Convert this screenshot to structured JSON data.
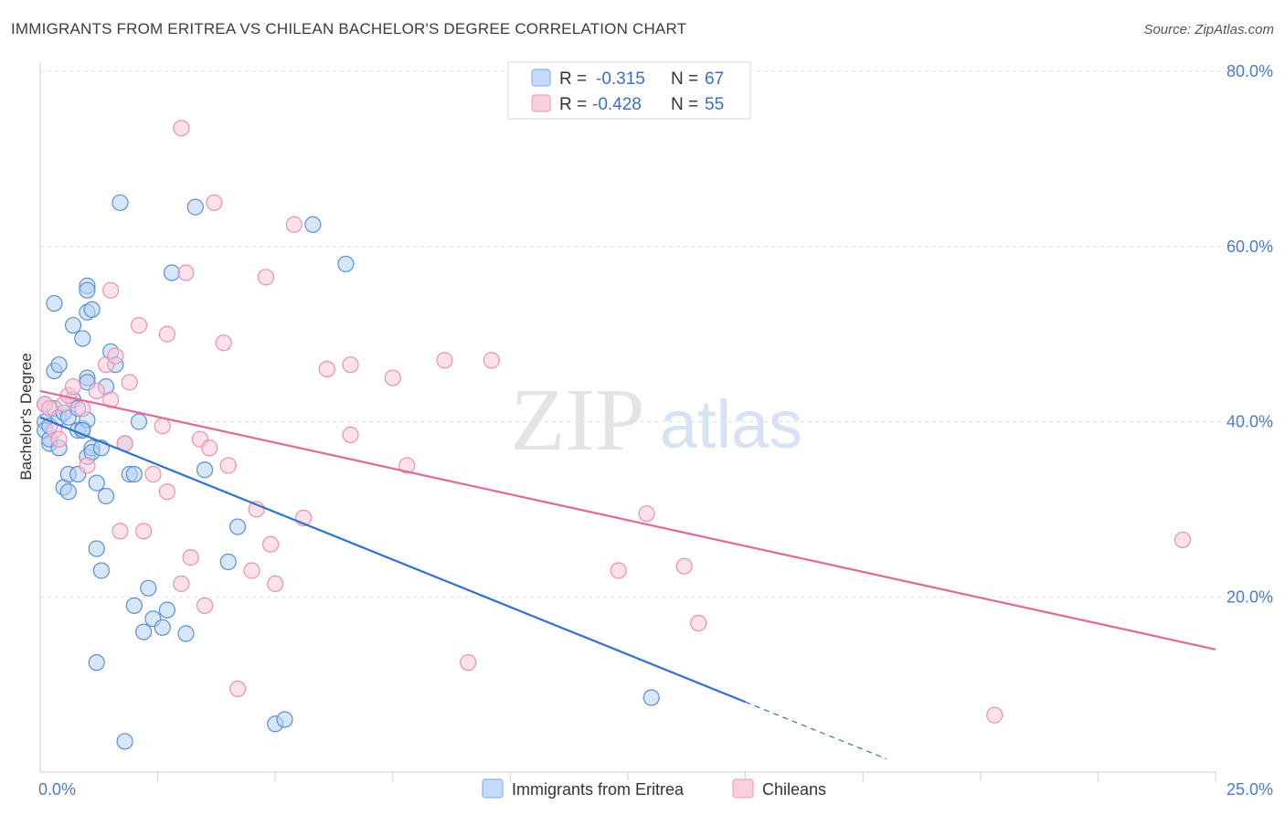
{
  "title": "IMMIGRANTS FROM ERITREA VS CHILEAN BACHELOR'S DEGREE CORRELATION CHART",
  "source": "Source: ZipAtlas.com",
  "watermark": {
    "zip": "ZIP",
    "atlas": "atlas"
  },
  "legend_top": [
    {
      "r_label": "R =",
      "r_value": "-0.315",
      "n_label": "N =",
      "n_value": "67",
      "color": "#8ab4ea",
      "fill": "#c5dafa"
    },
    {
      "r_label": "R =",
      "r_value": "-0.428",
      "n_label": "N =",
      "n_value": "55",
      "color": "#f3a3bf",
      "fill": "#fbd0de"
    }
  ],
  "chart_data": {
    "type": "scatter",
    "xlabel": "",
    "ylabel": "Bachelor's Degree",
    "xlim": [
      0,
      25
    ],
    "ylim": [
      0,
      80
    ],
    "x_tick_labels": [
      "0.0%",
      "25.0%"
    ],
    "y_tick_labels": [
      "20.0%",
      "40.0%",
      "60.0%",
      "80.0%"
    ],
    "y_ticks": [
      20,
      40,
      60,
      80
    ],
    "grid": true,
    "series": [
      {
        "name": "Immigrants from Eritrea",
        "color": "#5b8fd6",
        "fill": "#b7d1f3",
        "line_color": "#2f72d0",
        "trend": {
          "x": [
            0,
            15
          ],
          "y": [
            40.5,
            8.0
          ],
          "dash_to": [
            18.0,
            1.5
          ]
        },
        "points": [
          [
            0.1,
            42.0
          ],
          [
            0.1,
            40.0
          ],
          [
            0.1,
            39.0
          ],
          [
            0.2,
            37.5
          ],
          [
            0.2,
            38.0
          ],
          [
            0.2,
            39.5
          ],
          [
            0.3,
            41.5
          ],
          [
            0.3,
            53.5
          ],
          [
            0.3,
            45.8
          ],
          [
            0.4,
            46.5
          ],
          [
            0.4,
            40.5
          ],
          [
            0.4,
            37.0
          ],
          [
            0.5,
            41.0
          ],
          [
            0.5,
            32.5
          ],
          [
            0.6,
            34.0
          ],
          [
            0.6,
            32.0
          ],
          [
            0.6,
            40.5
          ],
          [
            0.7,
            51.0
          ],
          [
            0.7,
            42.5
          ],
          [
            0.8,
            41.5
          ],
          [
            0.8,
            39.0
          ],
          [
            0.8,
            34.0
          ],
          [
            0.9,
            39.2
          ],
          [
            0.9,
            49.5
          ],
          [
            1.0,
            45.0
          ],
          [
            1.0,
            44.5
          ],
          [
            1.0,
            40.2
          ],
          [
            1.0,
            52.5
          ],
          [
            1.0,
            55.5
          ],
          [
            1.0,
            55.0
          ],
          [
            1.0,
            36.0
          ],
          [
            1.1,
            52.8
          ],
          [
            1.1,
            37.0
          ],
          [
            1.1,
            36.5
          ],
          [
            1.2,
            33.0
          ],
          [
            1.2,
            25.5
          ],
          [
            1.3,
            37.0
          ],
          [
            1.3,
            23.0
          ],
          [
            1.4,
            31.5
          ],
          [
            1.4,
            44.0
          ],
          [
            1.5,
            48.0
          ],
          [
            1.6,
            46.5
          ],
          [
            1.7,
            65.0
          ],
          [
            1.8,
            37.5
          ],
          [
            1.9,
            34.0
          ],
          [
            2.0,
            34.0
          ],
          [
            2.0,
            19.0
          ],
          [
            2.1,
            40.0
          ],
          [
            2.2,
            16.0
          ],
          [
            2.3,
            21.0
          ],
          [
            2.4,
            17.5
          ],
          [
            2.6,
            16.5
          ],
          [
            2.7,
            18.5
          ],
          [
            2.8,
            57.0
          ],
          [
            3.1,
            15.8
          ],
          [
            3.3,
            64.5
          ],
          [
            3.5,
            34.5
          ],
          [
            4.0,
            24.0
          ],
          [
            4.2,
            28.0
          ],
          [
            5.0,
            5.5
          ],
          [
            5.2,
            6.0
          ],
          [
            5.8,
            62.5
          ],
          [
            6.5,
            58.0
          ],
          [
            13.0,
            8.5
          ],
          [
            1.2,
            12.5
          ],
          [
            1.8,
            3.5
          ],
          [
            0.9,
            39.0
          ]
        ]
      },
      {
        "name": "Chileans",
        "color": "#ee8fb0",
        "fill": "#fbc9d9",
        "line_color": "#e0689a",
        "trend": {
          "x": [
            0,
            25
          ],
          "y": [
            43.5,
            14.0
          ]
        },
        "points": [
          [
            0.1,
            42.0
          ],
          [
            0.2,
            41.5
          ],
          [
            0.3,
            39.0
          ],
          [
            0.4,
            38.0
          ],
          [
            0.5,
            42.0
          ],
          [
            0.6,
            43.0
          ],
          [
            0.7,
            44.0
          ],
          [
            0.9,
            41.5
          ],
          [
            1.0,
            35.0
          ],
          [
            1.2,
            43.5
          ],
          [
            1.4,
            46.5
          ],
          [
            1.5,
            55.0
          ],
          [
            1.5,
            42.5
          ],
          [
            1.6,
            47.5
          ],
          [
            1.7,
            27.5
          ],
          [
            1.8,
            37.5
          ],
          [
            1.9,
            44.5
          ],
          [
            2.1,
            51.0
          ],
          [
            2.2,
            27.5
          ],
          [
            2.4,
            34.0
          ],
          [
            2.6,
            39.5
          ],
          [
            2.7,
            32.0
          ],
          [
            2.7,
            50.0
          ],
          [
            3.0,
            21.5
          ],
          [
            3.0,
            73.5
          ],
          [
            3.1,
            57.0
          ],
          [
            3.2,
            24.5
          ],
          [
            3.4,
            38.0
          ],
          [
            3.5,
            19.0
          ],
          [
            3.6,
            37.0
          ],
          [
            3.7,
            65.0
          ],
          [
            3.9,
            49.0
          ],
          [
            4.0,
            35.0
          ],
          [
            4.2,
            9.5
          ],
          [
            4.5,
            23.0
          ],
          [
            4.6,
            30.0
          ],
          [
            4.8,
            56.5
          ],
          [
            4.9,
            26.0
          ],
          [
            5.0,
            21.5
          ],
          [
            5.4,
            62.5
          ],
          [
            5.6,
            29.0
          ],
          [
            6.1,
            46.0
          ],
          [
            6.6,
            46.5
          ],
          [
            6.6,
            38.5
          ],
          [
            7.5,
            45.0
          ],
          [
            7.8,
            35.0
          ],
          [
            8.6,
            47.0
          ],
          [
            9.1,
            12.5
          ],
          [
            9.6,
            47.0
          ],
          [
            12.3,
            23.0
          ],
          [
            12.9,
            29.5
          ],
          [
            13.7,
            23.5
          ],
          [
            14.0,
            17.0
          ],
          [
            20.3,
            6.5
          ],
          [
            24.3,
            26.5
          ]
        ]
      }
    ]
  }
}
